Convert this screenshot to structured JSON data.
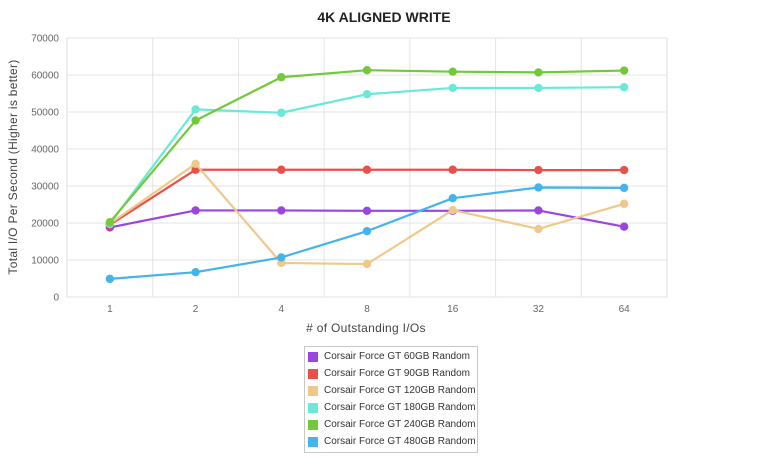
{
  "chart_data": {
    "type": "line",
    "title": "4K ALIGNED WRITE",
    "xlabel": "# of Outstanding I/Os",
    "ylabel": "Total I/O Per Second (Higher is better)",
    "categories": [
      "1",
      "2",
      "4",
      "8",
      "16",
      "32",
      "64"
    ],
    "ylim": [
      0,
      70000
    ],
    "yticks": [
      "0",
      "10000",
      "20000",
      "30000",
      "40000",
      "50000",
      "60000",
      "70000"
    ],
    "grid": true,
    "legend_position": "bottom-center",
    "series": [
      {
        "name": "Corsair Force GT 60GB Random",
        "color": "#9b45e0",
        "values": [
          18800,
          23400,
          23400,
          23300,
          23300,
          23400,
          19000
        ]
      },
      {
        "name": "Corsair Force GT 90GB Random",
        "color": "#e8504a",
        "values": [
          19500,
          34400,
          34400,
          34400,
          34400,
          34300,
          34300
        ]
      },
      {
        "name": "Corsair Force GT 120GB Random",
        "color": "#efc88a",
        "values": [
          19800,
          36000,
          9200,
          8900,
          23500,
          18400,
          25200
        ]
      },
      {
        "name": "Corsair Force GT 180GB Random",
        "color": "#6ae8d8",
        "values": [
          19800,
          50700,
          49800,
          54800,
          56500,
          56500,
          56700
        ]
      },
      {
        "name": "Corsair Force GT 240GB Random",
        "color": "#72c93a",
        "values": [
          20200,
          47700,
          59400,
          61300,
          60900,
          60700,
          61200
        ]
      },
      {
        "name": "Corsair Force GT 480GB Random",
        "color": "#45b4ea",
        "values": [
          4900,
          6700,
          10700,
          17800,
          26700,
          29600,
          29500
        ]
      }
    ]
  }
}
